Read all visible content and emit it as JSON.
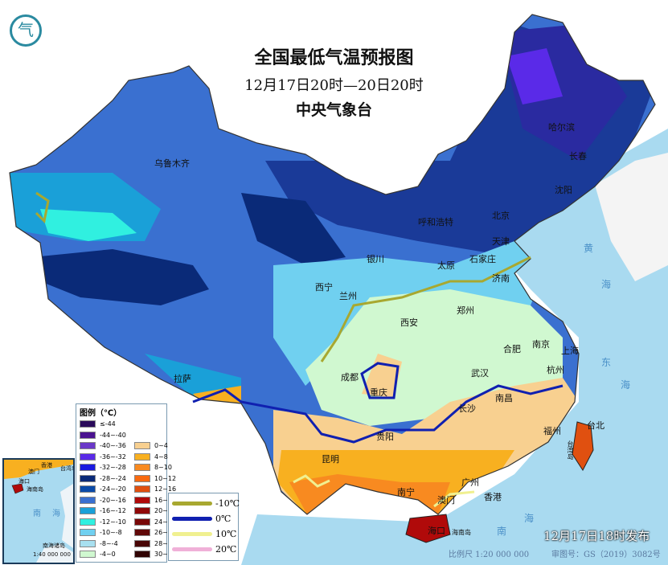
{
  "header": {
    "title": "全国最低气温预报图",
    "period": "12月17日20时—20日20时",
    "issuer": "中央气象台"
  },
  "logo": {
    "icon": "cma-logo-icon"
  },
  "cities": [
    "哈尔滨",
    "长春",
    "沈阳",
    "北京",
    "天津",
    "呼和浩特",
    "石家庄",
    "太原",
    "济南",
    "银川",
    "西宁",
    "兰州",
    "郑州",
    "西安",
    "合肥",
    "南京",
    "上海",
    "杭州",
    "武汉",
    "成都",
    "重庆",
    "南昌",
    "长沙",
    "贵阳",
    "福州",
    "台北",
    "昆明",
    "南宁",
    "广州",
    "香港",
    "澳门",
    "海口",
    "乌鲁木齐",
    "拉萨"
  ],
  "islands": {
    "hainan": "海南岛",
    "taiwan": "台湾岛"
  },
  "seas": [
    "黄",
    "海",
    "东",
    "海",
    "南",
    "海"
  ],
  "legend": {
    "title": "图例（℃）",
    "cold": [
      {
        "label": "≤-44",
        "color": "#2a0a5a"
      },
      {
        "label": "-44~-40",
        "color": "#4a1290"
      },
      {
        "label": "-40~-36",
        "color": "#6a38c8"
      },
      {
        "label": "-36~-32",
        "color": "#5a2ae8"
      },
      {
        "label": "-32~-28",
        "color": "#1a1ae0"
      },
      {
        "label": "-28~-24",
        "color": "#0a2a78"
      },
      {
        "label": "-24~-20",
        "color": "#0a4aa8"
      },
      {
        "label": "-20~-16",
        "color": "#3a70d0"
      },
      {
        "label": "-16~-12",
        "color": "#1aa0d8"
      },
      {
        "label": "-12~-10",
        "color": "#30f0e0"
      },
      {
        "label": "-10~-8",
        "color": "#70d0f0"
      },
      {
        "label": "-8~-4",
        "color": "#a8e0f0"
      },
      {
        "label": "-4~0",
        "color": "#d0f8d0"
      }
    ],
    "warm": [
      {
        "label": "0~4",
        "color": "#f8d090"
      },
      {
        "label": "4~8",
        "color": "#f8b020"
      },
      {
        "label": "8~10",
        "color": "#f88a20"
      },
      {
        "label": "10~12",
        "color": "#f86a10"
      },
      {
        "label": "12~16",
        "color": "#e05010"
      },
      {
        "label": "16~20",
        "color": "#b00a0a"
      },
      {
        "label": "20~24",
        "color": "#900808"
      },
      {
        "label": "24~26",
        "color": "#780808"
      },
      {
        "label": "26~28",
        "color": "#600808"
      },
      {
        "label": "28~30",
        "color": "#480505"
      },
      {
        "label": "30~32",
        "color": "#300303"
      }
    ],
    "isolines": [
      {
        "label": "-10℃",
        "color": "#a8a830"
      },
      {
        "label": "0℃",
        "color": "#1020b0"
      },
      {
        "label": "10℃",
        "color": "#f0f090"
      },
      {
        "label": "20℃",
        "color": "#f0b0d8"
      }
    ]
  },
  "inset": {
    "labels": [
      "澳门",
      "香港",
      "台湾岛",
      "海口",
      "海南岛",
      "南",
      "海",
      "南海诸岛"
    ],
    "scale": "1:40 000 000"
  },
  "footer": {
    "published": "12月17日18时发布",
    "scale": "比例尺 1:20 000 000",
    "review": "审图号：GS（2019）3082号"
  }
}
